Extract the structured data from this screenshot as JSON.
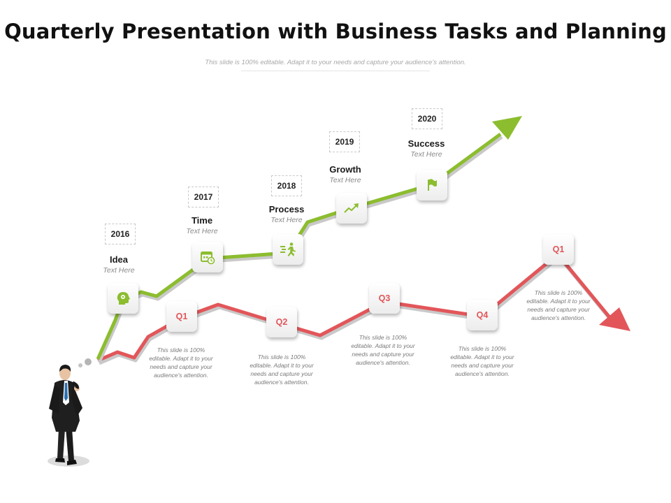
{
  "title": "Quarterly Presentation with Business Tasks and Planning",
  "subtitle": "This slide is 100% editable. Adapt it to your needs and capture your audience’s attention.",
  "colors": {
    "green": "#8cbd2f",
    "red": "#e2565a",
    "tile": "#f2f2f2",
    "text": "#111111"
  },
  "milestones": [
    {
      "year": "2016",
      "name": "Idea",
      "text": "Text Here",
      "icon": "head-idea-icon"
    },
    {
      "year": "2017",
      "name": "Time",
      "text": "Text Here",
      "icon": "calendar-clock-icon"
    },
    {
      "year": "2018",
      "name": "Process",
      "text": "Text Here",
      "icon": "running-man-icon"
    },
    {
      "year": "2019",
      "name": "Growth",
      "text": "Text Here",
      "icon": "trend-up-icon"
    },
    {
      "year": "2020",
      "name": "Success",
      "text": "Text Here",
      "icon": "flag-icon"
    }
  ],
  "quarters": [
    {
      "label": "Q1",
      "text": "This slide is 100% editable. Adapt it to your needs and capture your audience's attention."
    },
    {
      "label": "Q2",
      "text": "This slide is 100% editable. Adapt it to your needs and capture your audience's attention."
    },
    {
      "label": "Q3",
      "text": "This slide is 100% editable. Adapt it to your needs and capture your audience's attention."
    },
    {
      "label": "Q4",
      "text": "This slide is 100% editable. Adapt it to your needs and capture your audience's attention."
    },
    {
      "label": "Q1",
      "text": "This slide is 100% editable. Adapt it to your needs and capture your audience's attention."
    }
  ],
  "figure": {
    "icon": "businessman-thinking-icon"
  }
}
